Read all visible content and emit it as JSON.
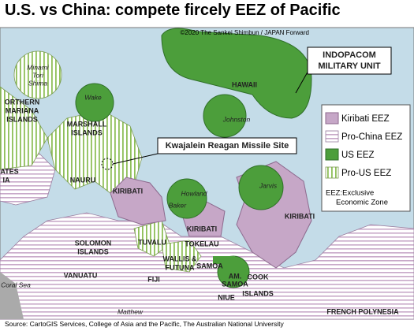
{
  "header": {
    "title": "U.S. vs China: compete fircely EEZ of Pacific",
    "credit": "©2020 The Sankei Shimbun / JAPAN Forward"
  },
  "labels": {
    "minami": "Minami",
    "tori": "Tori",
    "shima": "Shima",
    "nmariana1": "ORTHERN",
    "nmariana2": "MARIANA",
    "nmariana3": "ISLANDS",
    "wake": "Wake",
    "marshall1": "MARSHALL",
    "marshall2": "ISLANDS",
    "hawaii": "HAWAII",
    "johnston": "Johnston",
    "fsm1": "ATES",
    "fsm2": "IA",
    "nauru": "NAURU",
    "kiribati_w": "KIRIBATI",
    "kiribati_c": "KIRIBATI",
    "kiribati_e": "KIRIBATI",
    "howland": "Howland",
    "baker": "Baker",
    "jarvis": "Jarvis",
    "solomon1": "SOLOMON",
    "solomon2": "ISLANDS",
    "tuvalu": "TUVALU",
    "tokelau": "TOKELAU",
    "wallis1": "WALLIS &",
    "wallis2": "FUTUNA",
    "samoa": "SAMOA",
    "amsamoa1": "AM.",
    "amsamoa2": "SAMOA",
    "cook1": "COOK",
    "cook2": "ISLANDS",
    "vanuatu": "VANUATU",
    "fiji": "FIJI",
    "niue": "NIUE",
    "coral": "Coral Sea",
    "matthew": "Matthew",
    "frenchpoly": "FRENCH POLYNESIA"
  },
  "callouts": {
    "indopacom1": "INDOPACOM",
    "indopacom2": "MILITARY UNIT",
    "kwajalein": "Kwajalein Reagan Missile Site"
  },
  "legend": {
    "items": [
      "Kiribati EEZ",
      "Pro-China EEZ",
      "US EEZ",
      "Pro-US EEZ"
    ],
    "note1": "EEZ:Exclusive",
    "note2": "Economic Zone"
  },
  "footer": {
    "source": "Source: CartoGIS Services, College of Asia and the Pacific, The Australian National University"
  }
}
